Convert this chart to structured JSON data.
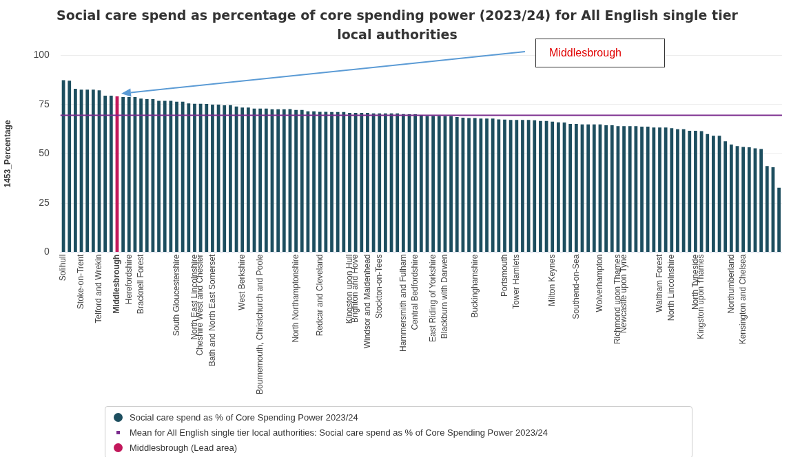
{
  "chart_data": {
    "type": "bar",
    "title": "Social care spend as percentage of core spending power (2023/24) for All English single tier local authorities",
    "ylabel": "1453_Percentage",
    "categories": [
      "Solihull",
      null,
      null,
      "Stoke-on-Trent",
      null,
      null,
      "Telford and Wrekin",
      null,
      null,
      "Middlesbrough",
      null,
      "Herefordshire",
      null,
      "Bracknell Forest",
      null,
      null,
      null,
      null,
      null,
      "South Gloucestershire",
      null,
      null,
      "North East Lincolnshire",
      "Cheshire West and Chester",
      null,
      "Bath and North East Somerset",
      null,
      null,
      null,
      null,
      "West Berkshire",
      null,
      null,
      "Bournemouth, Christchurch and Poole",
      null,
      null,
      null,
      null,
      null,
      "North Northamptonshire",
      null,
      null,
      null,
      "Redcar and Cleveland",
      null,
      null,
      null,
      null,
      "Kingston upon Hull",
      "Brighton and Hove",
      null,
      "Windsor and Maidenhead",
      null,
      "Stockton-on-Tees",
      null,
      null,
      null,
      "Hammersmith and Fulham",
      null,
      "Central Bedfordshire",
      null,
      null,
      "East Riding of Yorkshire",
      null,
      "Blackburn with Darwen",
      null,
      null,
      null,
      null,
      "Buckinghamshire",
      null,
      null,
      null,
      null,
      "Portsmouth",
      null,
      "Tower Hamlets",
      null,
      null,
      null,
      null,
      null,
      "Milton Keynes",
      null,
      null,
      null,
      "Southend-on-Sea",
      null,
      null,
      null,
      "Wolverhampton",
      null,
      null,
      "Richmond upon Thames",
      "Newcastle upon Tyne",
      null,
      null,
      null,
      null,
      null,
      "Waltham Forest",
      null,
      "North Lincolnshire",
      null,
      null,
      null,
      "North Tyneside",
      "Kingston upon Thames",
      null,
      null,
      null,
      null,
      "Northumberland",
      null,
      "Kensington and Chelsea",
      null,
      null,
      null,
      null,
      null,
      null
    ],
    "series": [
      {
        "name": "Social care spend as % of Core Spending Power 2023/24",
        "color": "#1d4e5f",
        "values": [
          87.4,
          87.1,
          83.0,
          82.6,
          82.6,
          82.6,
          82.2,
          79.5,
          79.5,
          null,
          78.8,
          78.8,
          78.8,
          78.0,
          77.8,
          77.8,
          76.9,
          76.9,
          76.9,
          76.5,
          76.5,
          75.6,
          75.4,
          75.4,
          75.3,
          75.0,
          75.0,
          74.6,
          74.7,
          74.0,
          73.5,
          73.5,
          73.0,
          73.0,
          73.0,
          72.6,
          72.6,
          72.6,
          72.7,
          72.3,
          72.3,
          71.6,
          71.6,
          71.3,
          71.3,
          71.2,
          71.2,
          71.2,
          70.8,
          70.8,
          70.8,
          70.8,
          70.5,
          70.5,
          70.5,
          70.5,
          70.5,
          70.2,
          70.1,
          70.1,
          69.4,
          69.2,
          69.2,
          69.2,
          69.1,
          69.1,
          68.7,
          68.3,
          68.2,
          68.2,
          67.9,
          67.9,
          67.9,
          67.5,
          67.4,
          67.2,
          67.2,
          67.2,
          67.2,
          67.0,
          66.7,
          66.7,
          66.3,
          66.0,
          65.9,
          65.2,
          65.2,
          64.9,
          64.9,
          64.9,
          64.9,
          64.5,
          64.5,
          64.1,
          64.1,
          64.1,
          64.1,
          63.8,
          63.8,
          63.4,
          63.4,
          63.4,
          63.0,
          62.5,
          62.5,
          61.7,
          61.7,
          61.5,
          60.0,
          59.2,
          59.2,
          56.4,
          54.7,
          53.9,
          53.5,
          53.3,
          52.8,
          52.4,
          43.8,
          43.2,
          32.8
        ]
      },
      {
        "name": "Middlesbrough (Lead area)",
        "color": "#c2185b",
        "values": [
          null,
          null,
          null,
          null,
          null,
          null,
          null,
          null,
          null,
          79.2,
          null,
          null,
          null,
          null,
          null,
          null,
          null,
          null,
          null,
          null,
          null,
          null,
          null,
          null,
          null,
          null,
          null,
          null,
          null,
          null,
          null,
          null,
          null,
          null,
          null,
          null,
          null,
          null,
          null,
          null,
          null,
          null,
          null,
          null,
          null,
          null,
          null,
          null,
          null,
          null,
          null,
          null,
          null,
          null,
          null,
          null,
          null,
          null,
          null,
          null,
          null,
          null,
          null,
          null,
          null,
          null,
          null,
          null,
          null,
          null,
          null,
          null,
          null,
          null,
          null,
          null,
          null,
          null,
          null,
          null,
          null,
          null,
          null,
          null,
          null,
          null,
          null,
          null,
          null,
          null,
          null,
          null,
          null,
          null,
          null,
          null,
          null,
          null,
          null,
          null,
          null,
          null,
          null,
          null,
          null,
          null,
          null,
          null,
          null,
          null,
          null,
          null,
          null,
          null,
          null,
          null,
          null,
          null,
          null,
          null,
          null
        ]
      }
    ],
    "ref_lines": [
      {
        "axis": "y",
        "value": 69.6,
        "label": "Mean for All English single tier local authorities: Social care spend as % of Core Spending Power 2023/24",
        "color": "#7b2d8e"
      }
    ],
    "annotations": [
      "Middlesbrough"
    ],
    "ylim": [
      0,
      100
    ],
    "yticks": [
      0,
      25,
      50,
      75,
      100
    ],
    "grid": "y",
    "legend": "bottom"
  }
}
